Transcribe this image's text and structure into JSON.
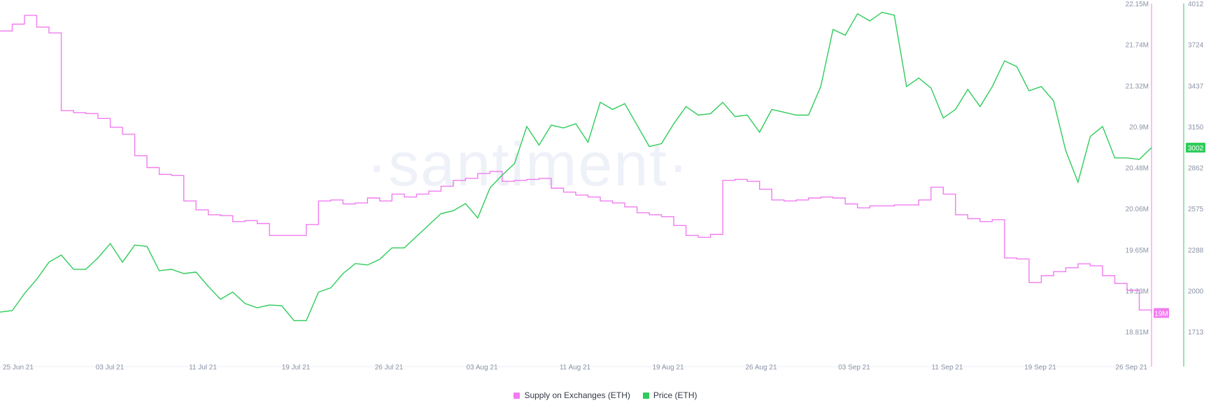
{
  "colors": {
    "supply": "#f07cf0",
    "price": "#2ecc5a",
    "axis_text": "#8a93a6",
    "background": "#ffffff"
  },
  "watermark": "·santiment·",
  "legend": {
    "supply_label": "Supply on Exchanges (ETH)",
    "price_label": "Price (ETH)"
  },
  "chart_data": {
    "type": "line",
    "title": "",
    "x_tick_labels": [
      "25 Jun 21",
      "03 Jul 21",
      "11 Jul 21",
      "19 Jul 21",
      "26 Jul 21",
      "03 Aug 21",
      "11 Aug 21",
      "19 Aug 21",
      "26 Aug 21",
      "03 Sep 21",
      "11 Sep 21",
      "19 Sep 21",
      "26 Sep 21"
    ],
    "axes": {
      "supply": {
        "label": "",
        "min": 18.81,
        "max": 22.15,
        "unit": "M",
        "tick_labels": [
          "22.15M",
          "21.74M",
          "21.32M",
          "20.9M",
          "20.48M",
          "20.06M",
          "19.65M",
          "19.23M",
          "18.81M"
        ],
        "current_label": "19M"
      },
      "price": {
        "label": "",
        "min": 1713,
        "max": 4012,
        "tick_labels": [
          "4012",
          "3724",
          "3437",
          "3150",
          "2862",
          "2575",
          "2288",
          "2000",
          "1713"
        ],
        "current_label": "3002"
      }
    },
    "grid": false,
    "legend_position": "bottom-center",
    "series": [
      {
        "name": "Supply on Exchanges (ETH)",
        "axis": "supply",
        "step": true,
        "points": [
          [
            "25 Jun",
            21.87
          ],
          [
            "26 Jun",
            21.94
          ],
          [
            "27 Jun",
            22.03
          ],
          [
            "28 Jun",
            21.91
          ],
          [
            "29 Jun",
            21.85
          ],
          [
            "30 Jun",
            21.06
          ],
          [
            "01 Jul",
            21.04
          ],
          [
            "02 Jul",
            21.03
          ],
          [
            "03 Jul",
            20.98
          ],
          [
            "04 Jul",
            20.89
          ],
          [
            "05 Jul",
            20.82
          ],
          [
            "06 Jul",
            20.6
          ],
          [
            "07 Jul",
            20.48
          ],
          [
            "08 Jul",
            20.41
          ],
          [
            "09 Jul",
            20.4
          ],
          [
            "10 Jul",
            20.14
          ],
          [
            "11 Jul",
            20.05
          ],
          [
            "12 Jul",
            20.0
          ],
          [
            "13 Jul",
            19.99
          ],
          [
            "14 Jul",
            19.93
          ],
          [
            "15 Jul",
            19.94
          ],
          [
            "16 Jul",
            19.91
          ],
          [
            "17 Jul",
            19.79
          ],
          [
            "18 Jul",
            19.79
          ],
          [
            "19 Jul",
            19.79
          ],
          [
            "20 Jul",
            19.9
          ],
          [
            "21 Jul",
            20.14
          ],
          [
            "22 Jul",
            20.15
          ],
          [
            "23 Jul",
            20.11
          ],
          [
            "24 Jul",
            20.12
          ],
          [
            "25 Jul",
            20.17
          ],
          [
            "26 Jul",
            20.14
          ],
          [
            "27 Jul",
            20.21
          ],
          [
            "28 Jul",
            20.18
          ],
          [
            "29 Jul",
            20.21
          ],
          [
            "30 Jul",
            20.24
          ],
          [
            "31 Jul",
            20.29
          ],
          [
            "01 Aug",
            20.35
          ],
          [
            "02 Aug",
            20.37
          ],
          [
            "03 Aug",
            20.42
          ],
          [
            "04 Aug",
            20.44
          ],
          [
            "05 Aug",
            20.34
          ],
          [
            "06 Aug",
            20.35
          ],
          [
            "07 Aug",
            20.36
          ],
          [
            "08 Aug",
            20.37
          ],
          [
            "09 Aug",
            20.27
          ],
          [
            "10 Aug",
            20.23
          ],
          [
            "11 Aug",
            20.2
          ],
          [
            "12 Aug",
            20.18
          ],
          [
            "13 Aug",
            20.14
          ],
          [
            "14 Aug",
            20.12
          ],
          [
            "15 Aug",
            20.08
          ],
          [
            "16 Aug",
            20.02
          ],
          [
            "17 Aug",
            20.0
          ],
          [
            "18 Aug",
            19.98
          ],
          [
            "19 Aug",
            19.89
          ],
          [
            "20 Aug",
            19.79
          ],
          [
            "21 Aug",
            19.77
          ],
          [
            "22 Aug",
            19.8
          ],
          [
            "23 Aug",
            20.35
          ],
          [
            "24 Aug",
            20.36
          ],
          [
            "25 Aug",
            20.34
          ],
          [
            "26 Aug",
            20.26
          ],
          [
            "27 Aug",
            20.15
          ],
          [
            "28 Aug",
            20.14
          ],
          [
            "29 Aug",
            20.15
          ],
          [
            "30 Aug",
            20.17
          ],
          [
            "31 Aug",
            20.18
          ],
          [
            "01 Sep",
            20.17
          ],
          [
            "02 Sep",
            20.11
          ],
          [
            "03 Sep",
            20.07
          ],
          [
            "04 Sep",
            20.09
          ],
          [
            "05 Sep",
            20.09
          ],
          [
            "06 Sep",
            20.1
          ],
          [
            "07 Sep",
            20.1
          ],
          [
            "08 Sep",
            20.15
          ],
          [
            "09 Sep",
            20.28
          ],
          [
            "10 Sep",
            20.21
          ],
          [
            "11 Sep",
            20.0
          ],
          [
            "12 Sep",
            19.96
          ],
          [
            "13 Sep",
            19.93
          ],
          [
            "14 Sep",
            19.95
          ],
          [
            "15 Sep",
            19.56
          ],
          [
            "16 Sep",
            19.55
          ],
          [
            "17 Sep",
            19.31
          ],
          [
            "18 Sep",
            19.38
          ],
          [
            "19 Sep",
            19.42
          ],
          [
            "20 Sep",
            19.46
          ],
          [
            "21 Sep",
            19.5
          ],
          [
            "22 Sep",
            19.48
          ],
          [
            "23 Sep",
            19.38
          ],
          [
            "24 Sep",
            19.3
          ],
          [
            "25 Sep",
            19.23
          ],
          [
            "26 Sep",
            19.03
          ],
          [
            "27 Sep",
            19.0
          ]
        ]
      },
      {
        "name": "Price (ETH)",
        "axis": "price",
        "step": false,
        "points": [
          [
            "25 Jun",
            1850
          ],
          [
            "26 Jun",
            1860
          ],
          [
            "27 Jun",
            1980
          ],
          [
            "28 Jun",
            2080
          ],
          [
            "29 Jun",
            2200
          ],
          [
            "30 Jun",
            2250
          ],
          [
            "01 Jul",
            2150
          ],
          [
            "02 Jul",
            2150
          ],
          [
            "03 Jul",
            2230
          ],
          [
            "04 Jul",
            2330
          ],
          [
            "05 Jul",
            2200
          ],
          [
            "06 Jul",
            2320
          ],
          [
            "07 Jul",
            2310
          ],
          [
            "08 Jul",
            2140
          ],
          [
            "09 Jul",
            2150
          ],
          [
            "10 Jul",
            2120
          ],
          [
            "11 Jul",
            2130
          ],
          [
            "12 Jul",
            2030
          ],
          [
            "13 Jul",
            1940
          ],
          [
            "14 Jul",
            1990
          ],
          [
            "15 Jul",
            1910
          ],
          [
            "16 Jul",
            1880
          ],
          [
            "17 Jul",
            1900
          ],
          [
            "18 Jul",
            1895
          ],
          [
            "19 Jul",
            1790
          ],
          [
            "20 Jul",
            1790
          ],
          [
            "21 Jul",
            1990
          ],
          [
            "22 Jul",
            2020
          ],
          [
            "23 Jul",
            2120
          ],
          [
            "24 Jul",
            2190
          ],
          [
            "25 Jul",
            2180
          ],
          [
            "26 Jul",
            2220
          ],
          [
            "27 Jul",
            2300
          ],
          [
            "28 Jul",
            2300
          ],
          [
            "29 Jul",
            2380
          ],
          [
            "30 Jul",
            2460
          ],
          [
            "31 Jul",
            2540
          ],
          [
            "01 Aug",
            2560
          ],
          [
            "02 Aug",
            2610
          ],
          [
            "03 Aug",
            2510
          ],
          [
            "04 Aug",
            2720
          ],
          [
            "05 Aug",
            2810
          ],
          [
            "06 Aug",
            2890
          ],
          [
            "07 Aug",
            3150
          ],
          [
            "08 Aug",
            3020
          ],
          [
            "09 Aug",
            3160
          ],
          [
            "10 Aug",
            3140
          ],
          [
            "11 Aug",
            3170
          ],
          [
            "12 Aug",
            3040
          ],
          [
            "13 Aug",
            3320
          ],
          [
            "14 Aug",
            3270
          ],
          [
            "15 Aug",
            3310
          ],
          [
            "16 Aug",
            3160
          ],
          [
            "17 Aug",
            3010
          ],
          [
            "18 Aug",
            3030
          ],
          [
            "19 Aug",
            3170
          ],
          [
            "20 Aug",
            3290
          ],
          [
            "21 Aug",
            3230
          ],
          [
            "22 Aug",
            3240
          ],
          [
            "23 Aug",
            3320
          ],
          [
            "24 Aug",
            3220
          ],
          [
            "25 Aug",
            3230
          ],
          [
            "26 Aug",
            3110
          ],
          [
            "27 Aug",
            3270
          ],
          [
            "28 Aug",
            3250
          ],
          [
            "29 Aug",
            3230
          ],
          [
            "30 Aug",
            3230
          ],
          [
            "31 Aug",
            3430
          ],
          [
            "01 Sep",
            3830
          ],
          [
            "02 Sep",
            3790
          ],
          [
            "03 Sep",
            3940
          ],
          [
            "04 Sep",
            3890
          ],
          [
            "05 Sep",
            3950
          ],
          [
            "06 Sep",
            3930
          ],
          [
            "07 Sep",
            3430
          ],
          [
            "08 Sep",
            3490
          ],
          [
            "09 Sep",
            3420
          ],
          [
            "10 Sep",
            3210
          ],
          [
            "11 Sep",
            3270
          ],
          [
            "12 Sep",
            3410
          ],
          [
            "13 Sep",
            3290
          ],
          [
            "14 Sep",
            3430
          ],
          [
            "15 Sep",
            3610
          ],
          [
            "16 Sep",
            3570
          ],
          [
            "17 Sep",
            3400
          ],
          [
            "18 Sep",
            3430
          ],
          [
            "19 Sep",
            3330
          ],
          [
            "20 Sep",
            2980
          ],
          [
            "21 Sep",
            2760
          ],
          [
            "22 Sep",
            3080
          ],
          [
            "23 Sep",
            3150
          ],
          [
            "24 Sep",
            2930
          ],
          [
            "25 Sep",
            2930
          ],
          [
            "26 Sep",
            2920
          ],
          [
            "27 Sep",
            3002
          ]
        ]
      }
    ]
  }
}
